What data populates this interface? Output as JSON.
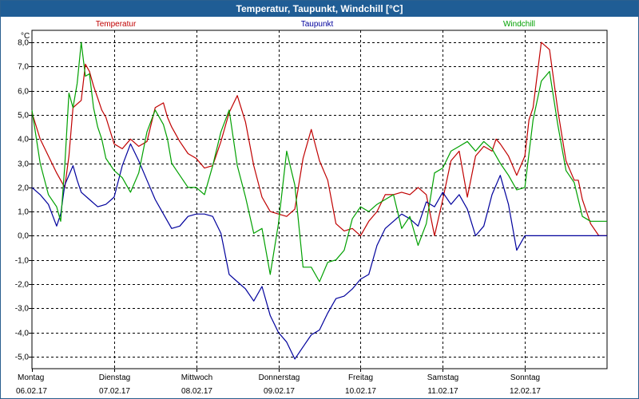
{
  "window": {
    "title": "Temperatur, Taupunkt, Windchill [°C]"
  },
  "chart_data": {
    "type": "line",
    "title": "Temperatur, Taupunkt, Windchill [°C]",
    "ylabel": "°C",
    "ylim": [
      -5.5,
      8.5
    ],
    "xlim": [
      0,
      7
    ],
    "grid": true,
    "yticks": [
      8,
      7,
      6,
      5,
      4,
      3,
      2,
      1,
      0,
      -1,
      -2,
      -3,
      -4,
      -5
    ],
    "ytick_labels": [
      "8,0",
      "7,0",
      "6,0",
      "5,0",
      "4,0",
      "3,0",
      "2,0",
      "1,0",
      "0,0",
      "-1,0",
      "-2,0",
      "-3,0",
      "-4,0",
      "-5,0"
    ],
    "xticks": [
      {
        "day": "Montag",
        "date": "06.02.17"
      },
      {
        "day": "Dienstag",
        "date": "07.02.17"
      },
      {
        "day": "Mittwoch",
        "date": "08.02.17"
      },
      {
        "day": "Donnerstag",
        "date": "09.02.17"
      },
      {
        "day": "Freitag",
        "date": "10.02.17"
      },
      {
        "day": "Samstag",
        "date": "11.02.17"
      },
      {
        "day": "Sonntag",
        "date": "12.02.17"
      }
    ],
    "series": [
      {
        "name": "Temperatur",
        "color": "#c00000",
        "x": [
          0,
          0.1,
          0.2,
          0.3,
          0.4,
          0.45,
          0.5,
          0.6,
          0.65,
          0.7,
          0.75,
          0.8,
          0.85,
          0.9,
          1.0,
          1.05,
          1.1,
          1.2,
          1.3,
          1.4,
          1.5,
          1.6,
          1.65,
          1.7,
          1.8,
          1.9,
          2.0,
          2.1,
          2.2,
          2.3,
          2.4,
          2.5,
          2.6,
          2.7,
          2.8,
          2.9,
          3.0,
          3.1,
          3.2,
          3.3,
          3.4,
          3.5,
          3.6,
          3.7,
          3.8,
          3.9,
          4.0,
          4.1,
          4.2,
          4.3,
          4.4,
          4.5,
          4.6,
          4.7,
          4.8,
          4.9,
          5.0,
          5.1,
          5.2,
          5.3,
          5.4,
          5.5,
          5.6,
          5.65,
          5.7,
          5.8,
          5.9,
          6.0,
          6.05,
          6.1,
          6.2,
          6.3,
          6.4,
          6.5,
          6.6,
          6.65,
          6.7,
          6.8,
          6.9,
          7.0
        ],
        "values": [
          5.1,
          4.0,
          3.3,
          2.6,
          2.0,
          3.3,
          5.3,
          5.6,
          7.1,
          6.8,
          6.2,
          5.7,
          5.2,
          4.9,
          3.8,
          3.7,
          3.6,
          4.0,
          3.7,
          3.9,
          5.3,
          5.5,
          4.9,
          4.5,
          3.9,
          3.4,
          3.2,
          2.8,
          2.9,
          3.9,
          5.1,
          5.8,
          4.7,
          2.9,
          1.6,
          1.0,
          0.9,
          0.8,
          1.1,
          3.2,
          4.4,
          3.1,
          2.3,
          0.5,
          0.2,
          0.3,
          0.0,
          0.6,
          1.0,
          1.7,
          1.7,
          1.8,
          1.7,
          2.0,
          1.7,
          0.0,
          1.5,
          3.1,
          3.5,
          1.6,
          3.3,
          3.7,
          3.5,
          4.0,
          3.8,
          3.3,
          2.5,
          3.3,
          4.8,
          5.3,
          8.0,
          7.7,
          5.2,
          3.1,
          2.3,
          2.3,
          1.5,
          0.5,
          0.0,
          0.0
        ]
      },
      {
        "name": "Taupunkt",
        "color": "#00009c",
        "x": [
          0,
          0.1,
          0.2,
          0.3,
          0.35,
          0.4,
          0.5,
          0.55,
          0.6,
          0.7,
          0.8,
          0.9,
          1.0,
          1.1,
          1.2,
          1.3,
          1.4,
          1.5,
          1.6,
          1.7,
          1.8,
          1.9,
          2.0,
          2.1,
          2.2,
          2.3,
          2.4,
          2.5,
          2.6,
          2.7,
          2.8,
          2.9,
          3.0,
          3.1,
          3.2,
          3.3,
          3.4,
          3.5,
          3.6,
          3.7,
          3.8,
          3.9,
          4.0,
          4.1,
          4.2,
          4.3,
          4.4,
          4.5,
          4.6,
          4.7,
          4.8,
          4.9,
          5.0,
          5.1,
          5.2,
          5.3,
          5.4,
          5.5,
          5.6,
          5.7,
          5.8,
          5.9,
          6.0,
          6.1,
          6.2,
          6.3,
          6.4,
          6.5,
          6.6,
          6.7,
          6.8,
          6.9,
          7.0
        ],
        "values": [
          2.0,
          1.7,
          1.3,
          0.4,
          0.9,
          2.1,
          2.9,
          2.3,
          1.8,
          1.5,
          1.2,
          1.3,
          1.6,
          2.9,
          3.8,
          3.1,
          2.3,
          1.5,
          0.9,
          0.3,
          0.4,
          0.8,
          0.9,
          0.9,
          0.8,
          0.1,
          -1.6,
          -1.9,
          -2.2,
          -2.7,
          -2.1,
          -3.3,
          -4.0,
          -4.4,
          -5.1,
          -4.6,
          -4.1,
          -3.9,
          -3.2,
          -2.6,
          -2.5,
          -2.2,
          -1.8,
          -1.6,
          -0.4,
          0.3,
          0.6,
          0.9,
          0.7,
          0.4,
          1.4,
          1.2,
          1.8,
          1.3,
          1.7,
          1.1,
          0.0,
          0.4,
          1.7,
          2.5,
          1.3,
          -0.6,
          0.0,
          0.0,
          0.0,
          0.0,
          0.0,
          0.0,
          0.0,
          0.0,
          0.0,
          0.0,
          0.0
        ]
      },
      {
        "name": "Windchill",
        "color": "#00a000",
        "x": [
          0,
          0.1,
          0.2,
          0.3,
          0.35,
          0.4,
          0.45,
          0.5,
          0.55,
          0.6,
          0.65,
          0.7,
          0.75,
          0.8,
          0.85,
          0.9,
          1.0,
          1.1,
          1.2,
          1.3,
          1.4,
          1.5,
          1.6,
          1.65,
          1.7,
          1.8,
          1.9,
          2.0,
          2.1,
          2.2,
          2.3,
          2.4,
          2.5,
          2.6,
          2.7,
          2.8,
          2.9,
          3.0,
          3.1,
          3.2,
          3.3,
          3.4,
          3.5,
          3.6,
          3.7,
          3.8,
          3.9,
          4.0,
          4.1,
          4.2,
          4.3,
          4.4,
          4.5,
          4.6,
          4.7,
          4.8,
          4.9,
          5.0,
          5.1,
          5.2,
          5.3,
          5.4,
          5.5,
          5.6,
          5.7,
          5.8,
          5.9,
          6.0,
          6.1,
          6.2,
          6.3,
          6.4,
          6.5,
          6.6,
          6.7,
          6.8,
          6.9,
          7.0
        ],
        "values": [
          5.2,
          3.0,
          1.7,
          1.2,
          0.6,
          2.9,
          5.9,
          5.3,
          6.3,
          8.0,
          6.6,
          6.7,
          5.3,
          4.5,
          4.0,
          3.2,
          2.7,
          2.4,
          1.8,
          2.6,
          4.3,
          5.2,
          4.6,
          4.0,
          3.0,
          2.5,
          2.0,
          2.0,
          1.7,
          2.9,
          4.3,
          5.2,
          2.9,
          1.6,
          0.1,
          0.3,
          -1.6,
          0.5,
          3.5,
          2.1,
          -1.3,
          -1.3,
          -1.9,
          -1.1,
          -1.0,
          -0.6,
          0.7,
          1.2,
          1.0,
          1.3,
          1.5,
          1.7,
          0.3,
          0.8,
          -0.4,
          0.5,
          2.6,
          2.8,
          3.5,
          3.7,
          3.9,
          3.5,
          3.9,
          3.6,
          3.0,
          2.5,
          1.9,
          2.0,
          4.8,
          6.4,
          6.8,
          4.6,
          2.7,
          2.2,
          0.8,
          0.6,
          0.6,
          0.6
        ]
      }
    ]
  }
}
